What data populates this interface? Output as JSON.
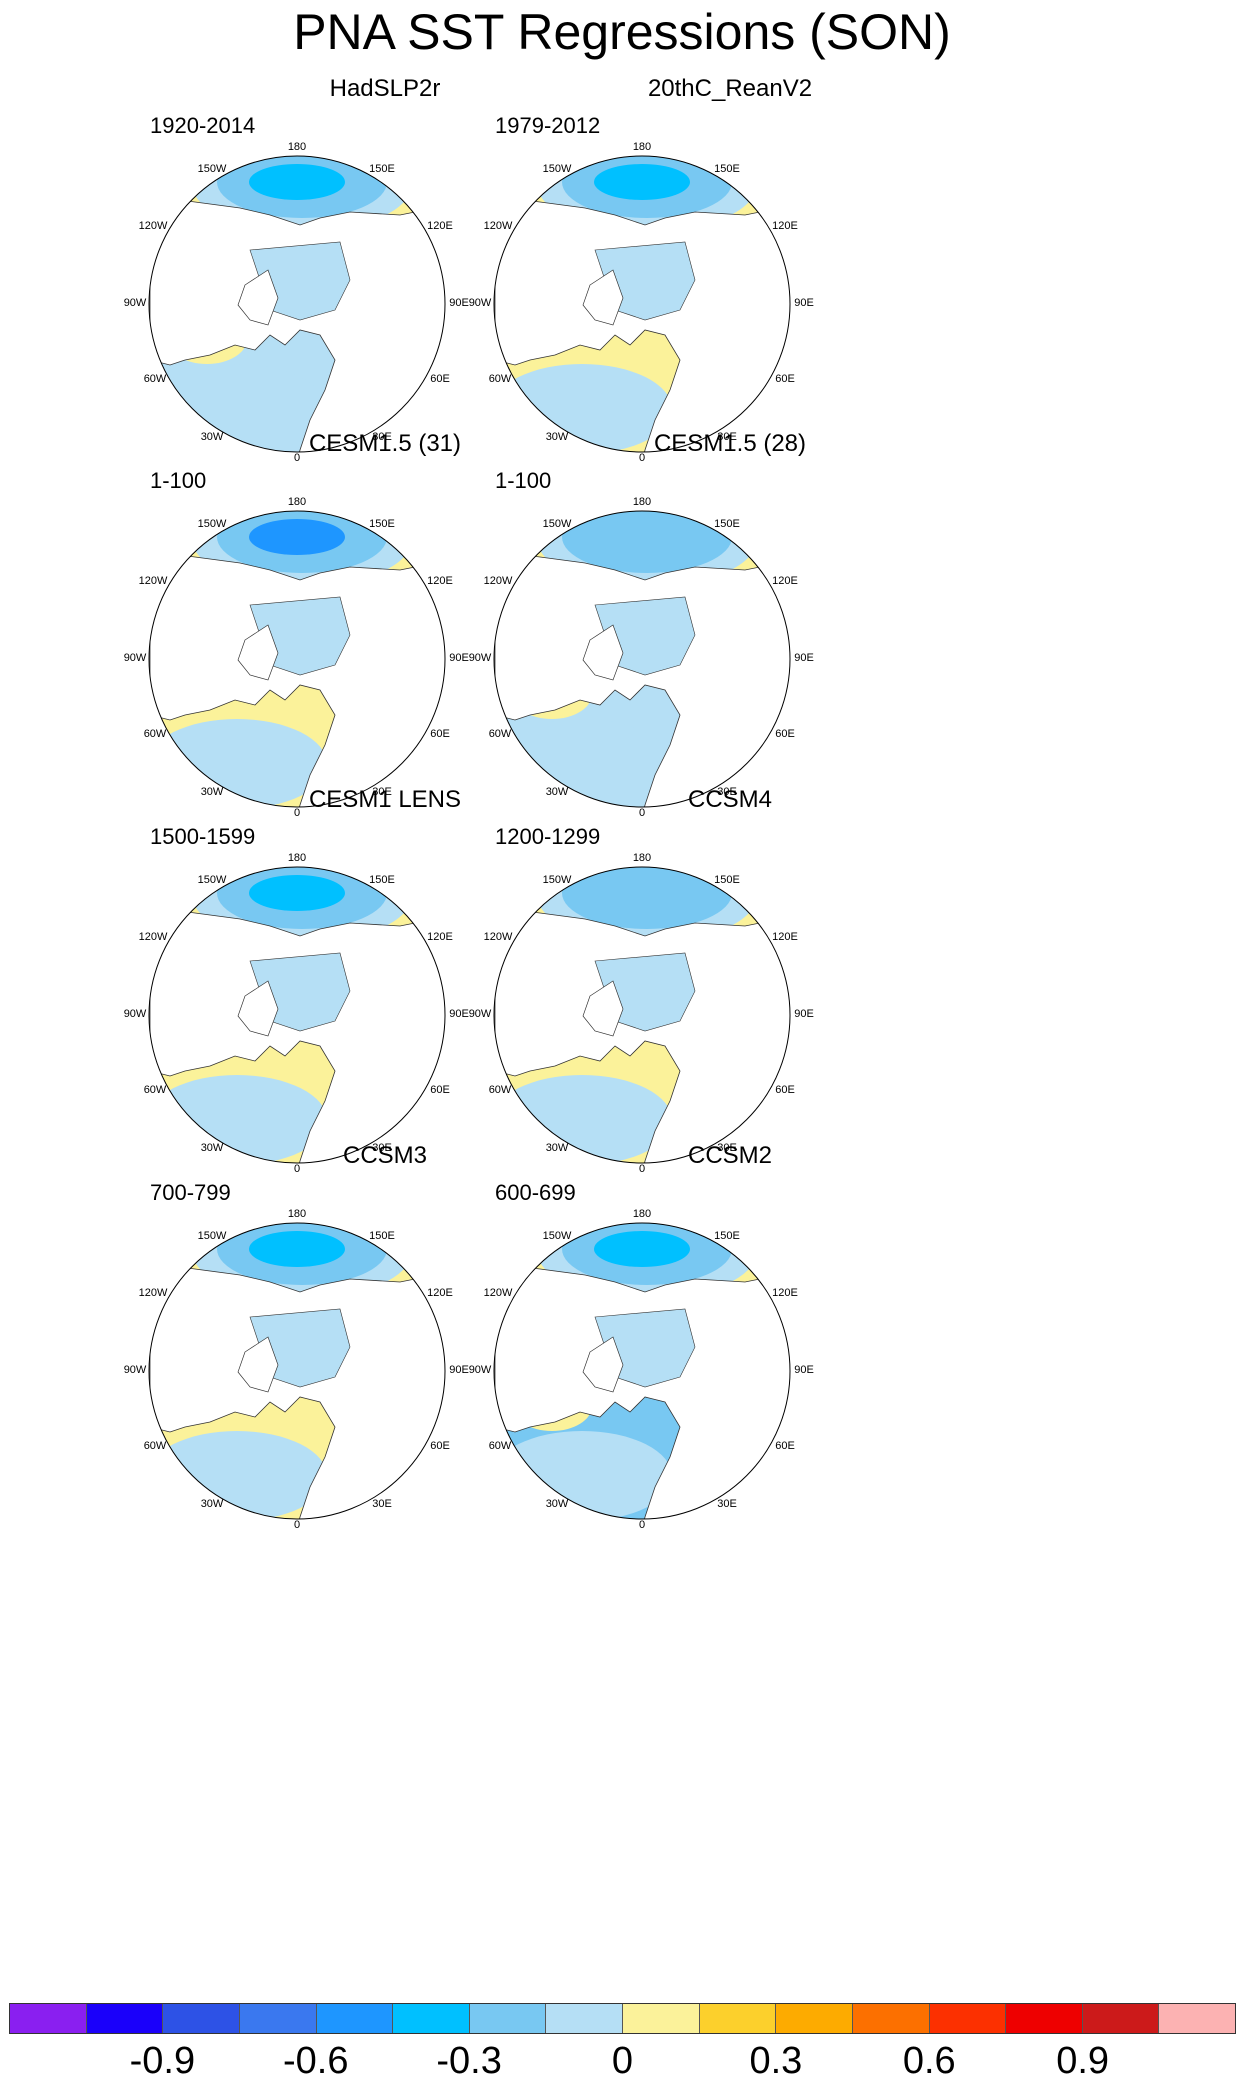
{
  "figure": {
    "title": "PNA SST Regressions (SON)"
  },
  "map_labels": {
    "top": "180",
    "top_left": "150W",
    "top_right": "150E",
    "upper_left": "120W",
    "upper_right": "120E",
    "left": "90W",
    "right": "90E",
    "lower_left": "60W",
    "lower_right": "60E",
    "bottom_left": "30W",
    "bottom_right": "30E",
    "bottom": "0"
  },
  "panels": [
    {
      "title": "HadSLP2r",
      "period": "1920-2014",
      "pacific_min": -0.4,
      "atlantic_mean": -0.1
    },
    {
      "title": "20thC_ReanV2",
      "period": "1979-2012",
      "pacific_min": -0.4,
      "atlantic_mean": 0.05
    },
    {
      "title": "CESM1.5 (31)",
      "period": "1-100",
      "pacific_min": -0.5,
      "atlantic_mean": 0.05
    },
    {
      "title": "CESM1.5 (28)",
      "period": "1-100",
      "pacific_min": -0.3,
      "atlantic_mean": -0.05
    },
    {
      "title": "CESM1 LENS",
      "period": "1500-1599",
      "pacific_min": -0.4,
      "atlantic_mean": 0.05
    },
    {
      "title": "CCSM4",
      "period": "1200-1299",
      "pacific_min": -0.3,
      "atlantic_mean": 0.05
    },
    {
      "title": "CCSM3",
      "period": "700-799",
      "pacific_min": -0.4,
      "atlantic_mean": 0.05
    },
    {
      "title": "CCSM2",
      "period": "600-699",
      "pacific_min": -0.4,
      "atlantic_mean": -0.2
    }
  ],
  "colorbar": {
    "colors": [
      "#8a1ff0",
      "#1a00fa",
      "#2d52e6",
      "#3a78ef",
      "#1e96ff",
      "#00c0ff",
      "#78c8f2",
      "#b5dff5",
      "#fbf29a",
      "#fcd02c",
      "#fdab00",
      "#fc7000",
      "#fc3000",
      "#ee0000",
      "#cc1a1a",
      "#fcb2b2"
    ],
    "tick_labels": [
      "-0.9",
      "-0.6",
      "-0.3",
      "0",
      "0.3",
      "0.6",
      "0.9"
    ],
    "tick_values": [
      -0.9,
      -0.6,
      -0.3,
      0,
      0.3,
      0.6,
      0.9
    ],
    "range": [
      -1.2,
      1.2
    ]
  }
}
